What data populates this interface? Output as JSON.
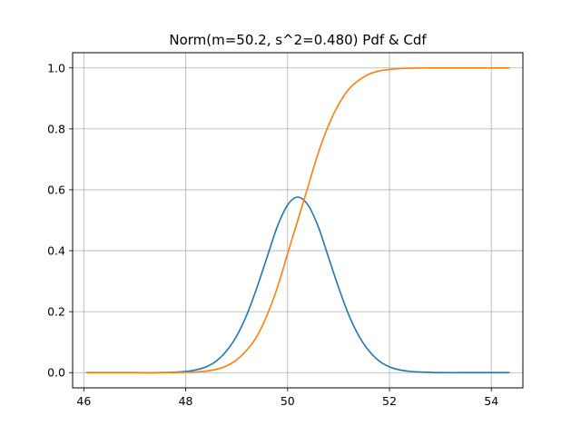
{
  "chart_data": {
    "type": "line",
    "title": "Norm(m=50.2, s^2=0.480) Pdf & Cdf",
    "xlabel": "",
    "ylabel": "",
    "xlim": [
      45.78,
      54.62
    ],
    "ylim": [
      -0.05,
      1.05
    ],
    "xticks": [
      46,
      48,
      50,
      52,
      54
    ],
    "xtick_labels": [
      "46",
      "48",
      "50",
      "52",
      "54"
    ],
    "yticks": [
      0.0,
      0.2,
      0.4,
      0.6,
      0.8,
      1.0
    ],
    "ytick_labels": [
      "0.0",
      "0.2",
      "0.4",
      "0.6",
      "0.8",
      "1.0"
    ],
    "grid": true,
    "legend": "none",
    "x": [
      46.04,
      46.5,
      47.0,
      47.5,
      48.0,
      48.2,
      48.4,
      48.6,
      48.8,
      49.0,
      49.2,
      49.4,
      49.6,
      49.8,
      50.0,
      50.2,
      50.4,
      50.6,
      50.8,
      51.0,
      51.2,
      51.4,
      51.6,
      51.8,
      52.0,
      52.2,
      52.4,
      52.6,
      52.8,
      53.0,
      53.5,
      54.0,
      54.36
    ],
    "series": [
      {
        "color": "#1f77b4",
        "values": [
          0.0,
          0.0,
          0.0,
          0.0,
          0.004,
          0.009,
          0.019,
          0.038,
          0.071,
          0.12,
          0.19,
          0.28,
          0.38,
          0.48,
          0.55,
          0.576,
          0.55,
          0.48,
          0.38,
          0.28,
          0.19,
          0.12,
          0.071,
          0.038,
          0.019,
          0.009,
          0.004,
          0.002,
          0.001,
          0.0,
          0.0,
          0.0,
          0.0
        ]
      },
      {
        "color": "#ff7f0e",
        "values": [
          0.0,
          0.0,
          0.0,
          0.0,
          0.001,
          0.002,
          0.005,
          0.011,
          0.022,
          0.042,
          0.074,
          0.12,
          0.19,
          0.28,
          0.39,
          0.5,
          0.61,
          0.72,
          0.81,
          0.88,
          0.93,
          0.96,
          0.98,
          0.99,
          0.995,
          0.998,
          0.999,
          1.0,
          1.0,
          1.0,
          1.0,
          1.0,
          1.0
        ]
      }
    ]
  }
}
